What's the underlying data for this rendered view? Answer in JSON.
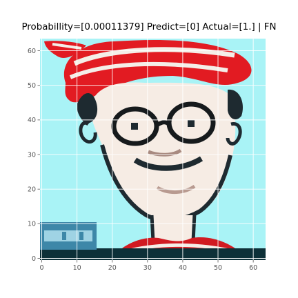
{
  "figure": {
    "title": "Probabillity=[0.00011379] Predict=[0] Actual=[1.] | FN"
  },
  "image": {
    "subject": "cartoon character face",
    "pixel_grid": [
      64,
      64
    ],
    "colors": {
      "background": "#a9f3f6",
      "hat_red": "#e21b22",
      "hat_white": "#f4eee8",
      "skin": "#f6ece4",
      "outline": "#1e2a30",
      "glasses": "#161a1c",
      "shirt_red": "#d11b22",
      "dark_bottom": "#0d3038",
      "panel": "#3d87a8",
      "grid": "#ffffff",
      "tick": "#555555"
    }
  },
  "chart_data": {
    "type": "heatmap",
    "title": "Probabillity=[0.00011379] Predict=[0] Actual=[1.] | FN",
    "x_ticks": [
      "0",
      "10",
      "20",
      "30",
      "40",
      "50",
      "60"
    ],
    "y_ticks": [
      "0",
      "10",
      "20",
      "30",
      "40",
      "50",
      "60"
    ],
    "xlim": [
      -0.5,
      63.5
    ],
    "ylim": [
      63.5,
      -0.5
    ],
    "grid": true
  }
}
